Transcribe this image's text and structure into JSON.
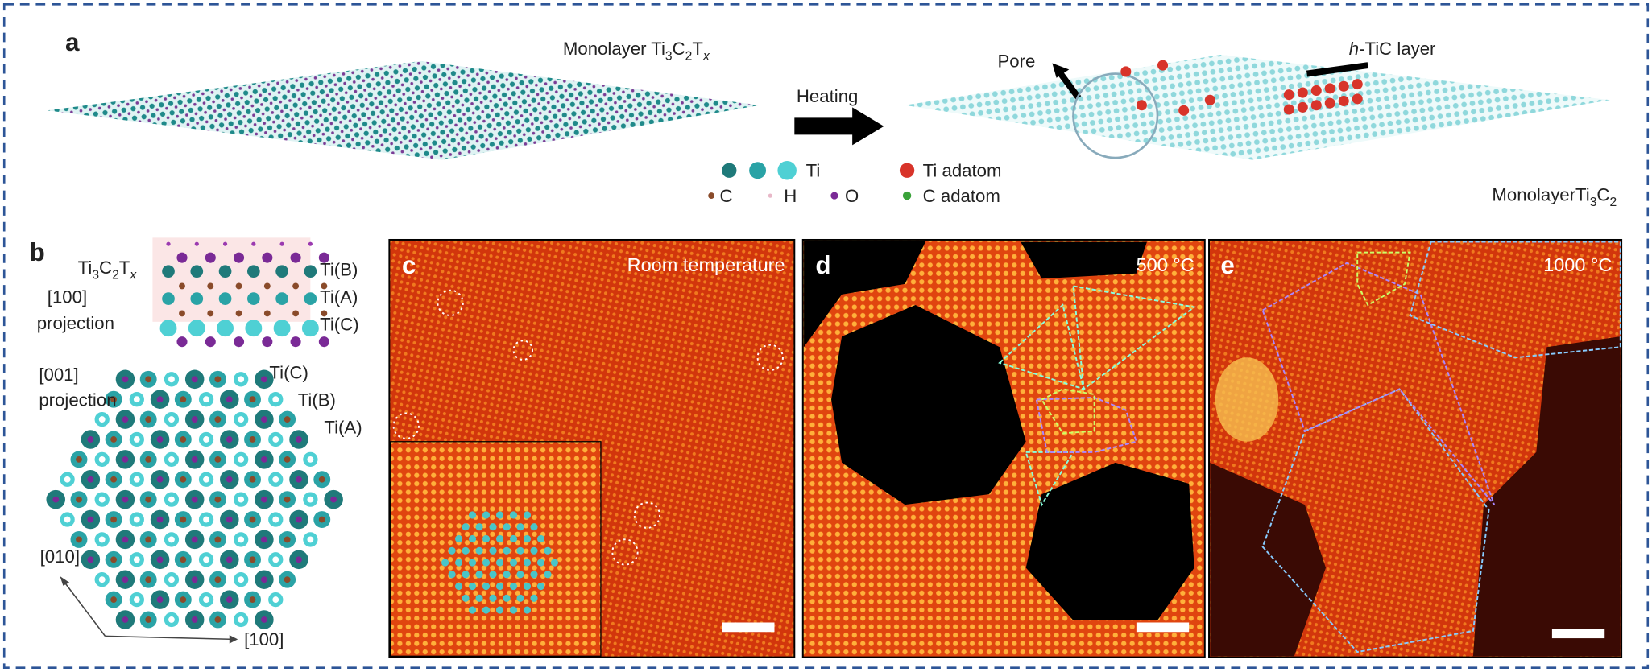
{
  "panel_a": {
    "label": "a",
    "monolayer_ti3c2tx": [
      "Monolayer Ti",
      "3",
      "C",
      "2",
      "T",
      "x"
    ],
    "heating": "Heating",
    "pore": "Pore",
    "htic_layer": [
      "h",
      "-TiC layer"
    ],
    "legend": [
      "Ti",
      "C",
      "H",
      "O",
      "Ti adatom",
      "C adatom"
    ],
    "monolayer_ti3c2": [
      "MonolayerTi",
      "3",
      "C",
      "2"
    ]
  },
  "panel_b": {
    "label": "b",
    "formula": [
      "Ti",
      "3",
      "C",
      "2",
      "T",
      "x"
    ],
    "side_projection": [
      "[100]",
      "projection"
    ],
    "side_sites": [
      "Ti(B)",
      "Ti(A)",
      "Ti(C)"
    ],
    "top_projection": [
      "[001]",
      "projection"
    ],
    "top_sites": [
      "Ti(C)",
      "Ti(B)",
      "Ti(A)"
    ],
    "axes": [
      "[010]",
      "[100]"
    ]
  },
  "panel_c": {
    "label": "c",
    "caption": "Room temperature"
  },
  "panel_d": {
    "label": "d",
    "caption": "500 °C"
  },
  "panel_e": {
    "label": "e",
    "caption": "1000 °C"
  }
}
